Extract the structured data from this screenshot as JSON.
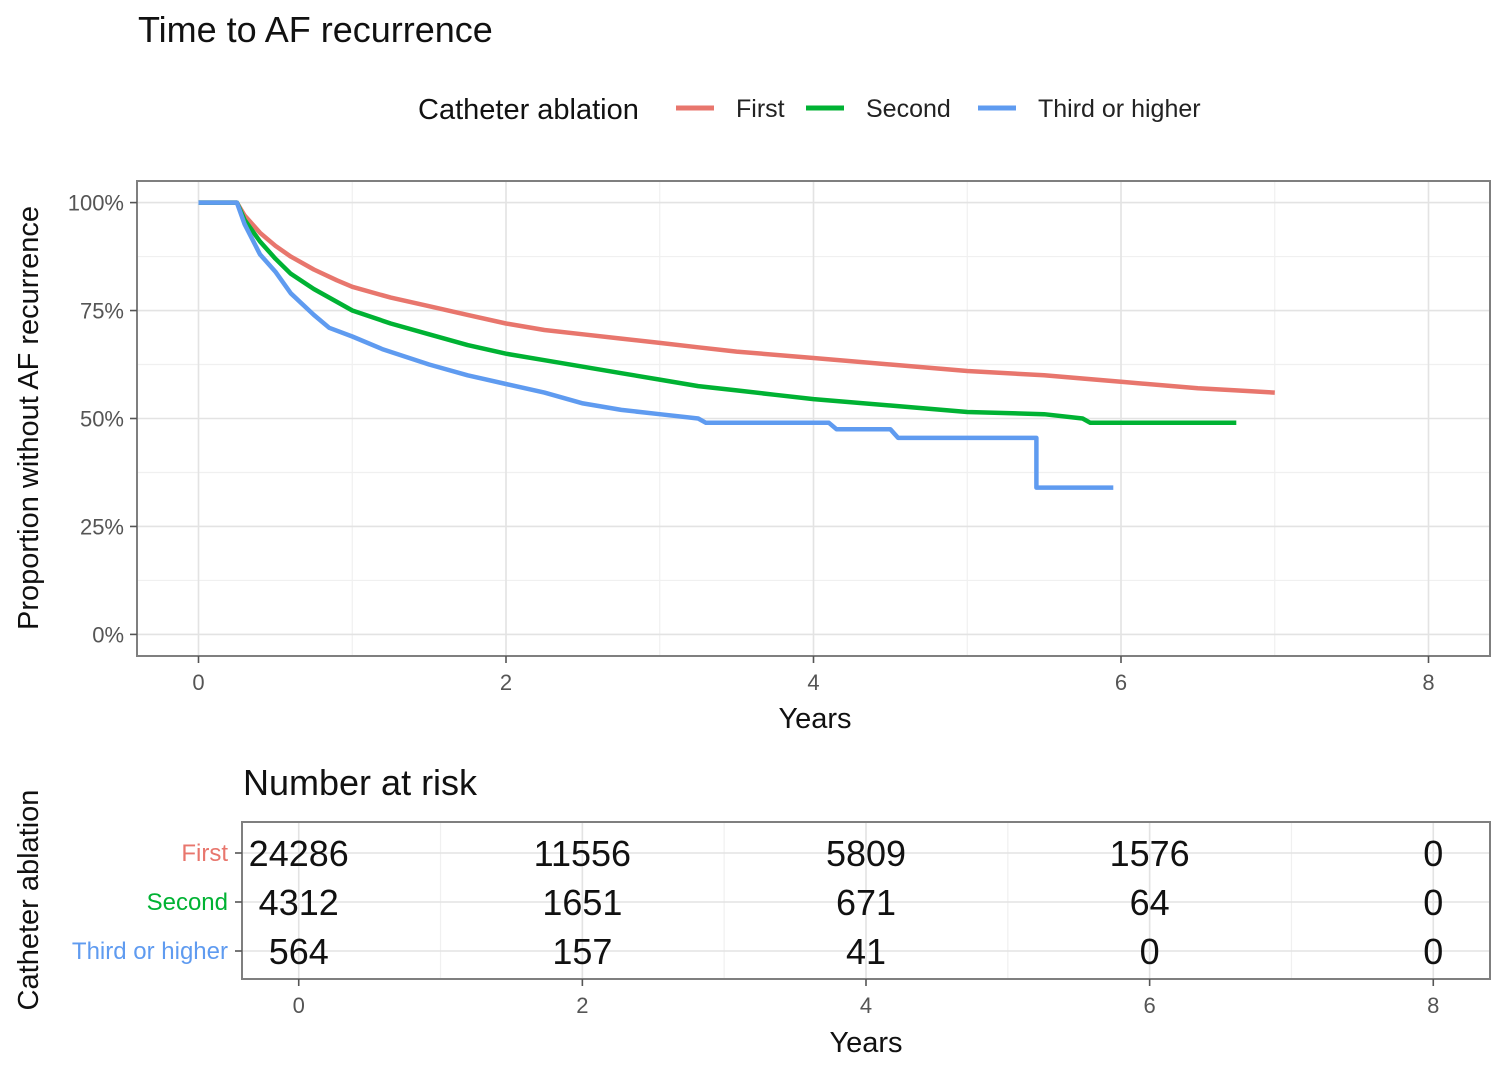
{
  "chart_data": [
    {
      "type": "line",
      "title": "Time to AF recurrence",
      "xlabel": "Years",
      "ylabel": "Proportion without AF recurrence",
      "xlim": [
        -0.4,
        8.4
      ],
      "ylim": [
        -0.05,
        1.05
      ],
      "x_ticks": [
        "0",
        "2",
        "4",
        "6",
        "8"
      ],
      "y_ticks": [
        "0%",
        "25%",
        "50%",
        "75%",
        "100%"
      ],
      "grid": true,
      "legend": {
        "title": "Catheter ablation",
        "position": "top"
      },
      "series": [
        {
          "name": "First",
          "color": "#E8766D",
          "points": [
            [
              0,
              1.0
            ],
            [
              0.25,
              1.0
            ],
            [
              0.3,
              0.97
            ],
            [
              0.4,
              0.93
            ],
            [
              0.5,
              0.9
            ],
            [
              0.6,
              0.875
            ],
            [
              0.75,
              0.845
            ],
            [
              0.9,
              0.82
            ],
            [
              1.0,
              0.805
            ],
            [
              1.25,
              0.78
            ],
            [
              1.5,
              0.76
            ],
            [
              1.75,
              0.74
            ],
            [
              2.0,
              0.72
            ],
            [
              2.25,
              0.705
            ],
            [
              2.5,
              0.695
            ],
            [
              2.75,
              0.685
            ],
            [
              3.0,
              0.675
            ],
            [
              3.25,
              0.665
            ],
            [
              3.5,
              0.655
            ],
            [
              4.0,
              0.64
            ],
            [
              4.5,
              0.625
            ],
            [
              5.0,
              0.61
            ],
            [
              5.5,
              0.6
            ],
            [
              6.0,
              0.585
            ],
            [
              6.5,
              0.57
            ],
            [
              6.75,
              0.565
            ],
            [
              7.0,
              0.56
            ]
          ]
        },
        {
          "name": "Second",
          "color": "#00B233",
          "points": [
            [
              0,
              1.0
            ],
            [
              0.25,
              1.0
            ],
            [
              0.3,
              0.96
            ],
            [
              0.4,
              0.91
            ],
            [
              0.5,
              0.87
            ],
            [
              0.6,
              0.835
            ],
            [
              0.75,
              0.8
            ],
            [
              0.9,
              0.77
            ],
            [
              1.0,
              0.75
            ],
            [
              1.25,
              0.72
            ],
            [
              1.5,
              0.695
            ],
            [
              1.75,
              0.67
            ],
            [
              2.0,
              0.65
            ],
            [
              2.25,
              0.635
            ],
            [
              2.5,
              0.62
            ],
            [
              2.75,
              0.605
            ],
            [
              3.0,
              0.59
            ],
            [
              3.25,
              0.575
            ],
            [
              3.5,
              0.565
            ],
            [
              3.75,
              0.555
            ],
            [
              4.0,
              0.545
            ],
            [
              4.5,
              0.53
            ],
            [
              5.0,
              0.515
            ],
            [
              5.5,
              0.51
            ],
            [
              5.75,
              0.5
            ],
            [
              5.8,
              0.49
            ],
            [
              6.0,
              0.49
            ],
            [
              6.75,
              0.49
            ]
          ]
        },
        {
          "name": "Third or higher",
          "color": "#5F9BF0",
          "points": [
            [
              0,
              1.0
            ],
            [
              0.25,
              1.0
            ],
            [
              0.3,
              0.95
            ],
            [
              0.4,
              0.88
            ],
            [
              0.5,
              0.84
            ],
            [
              0.6,
              0.79
            ],
            [
              0.75,
              0.74
            ],
            [
              0.85,
              0.71
            ],
            [
              1.0,
              0.69
            ],
            [
              1.2,
              0.66
            ],
            [
              1.5,
              0.625
            ],
            [
              1.75,
              0.6
            ],
            [
              2.0,
              0.58
            ],
            [
              2.25,
              0.56
            ],
            [
              2.5,
              0.535
            ],
            [
              2.75,
              0.52
            ],
            [
              3.0,
              0.51
            ],
            [
              3.25,
              0.5
            ],
            [
              3.3,
              0.49
            ],
            [
              4.1,
              0.49
            ],
            [
              4.15,
              0.475
            ],
            [
              4.5,
              0.475
            ],
            [
              4.55,
              0.455
            ],
            [
              5.45,
              0.455
            ],
            [
              5.45,
              0.34
            ],
            [
              5.95,
              0.34
            ]
          ]
        }
      ]
    },
    {
      "type": "table",
      "title": "Number at risk",
      "xlabel": "Years",
      "ylabel": "Catheter ablation",
      "x_ticks": [
        "0",
        "2",
        "4",
        "6",
        "8"
      ],
      "columns_x": [
        0,
        2,
        4,
        6,
        8
      ],
      "rows": [
        {
          "group": "First",
          "color": "#E8766D",
          "values": [
            "24286",
            "11556",
            "5809",
            "1576",
            "0"
          ]
        },
        {
          "group": "Second",
          "color": "#00B233",
          "values": [
            "4312",
            "1651",
            "671",
            "64",
            "0"
          ]
        },
        {
          "group": "Third or higher",
          "color": "#5F9BF0",
          "values": [
            "564",
            "157",
            "41",
            "0",
            "0"
          ]
        }
      ]
    }
  ]
}
